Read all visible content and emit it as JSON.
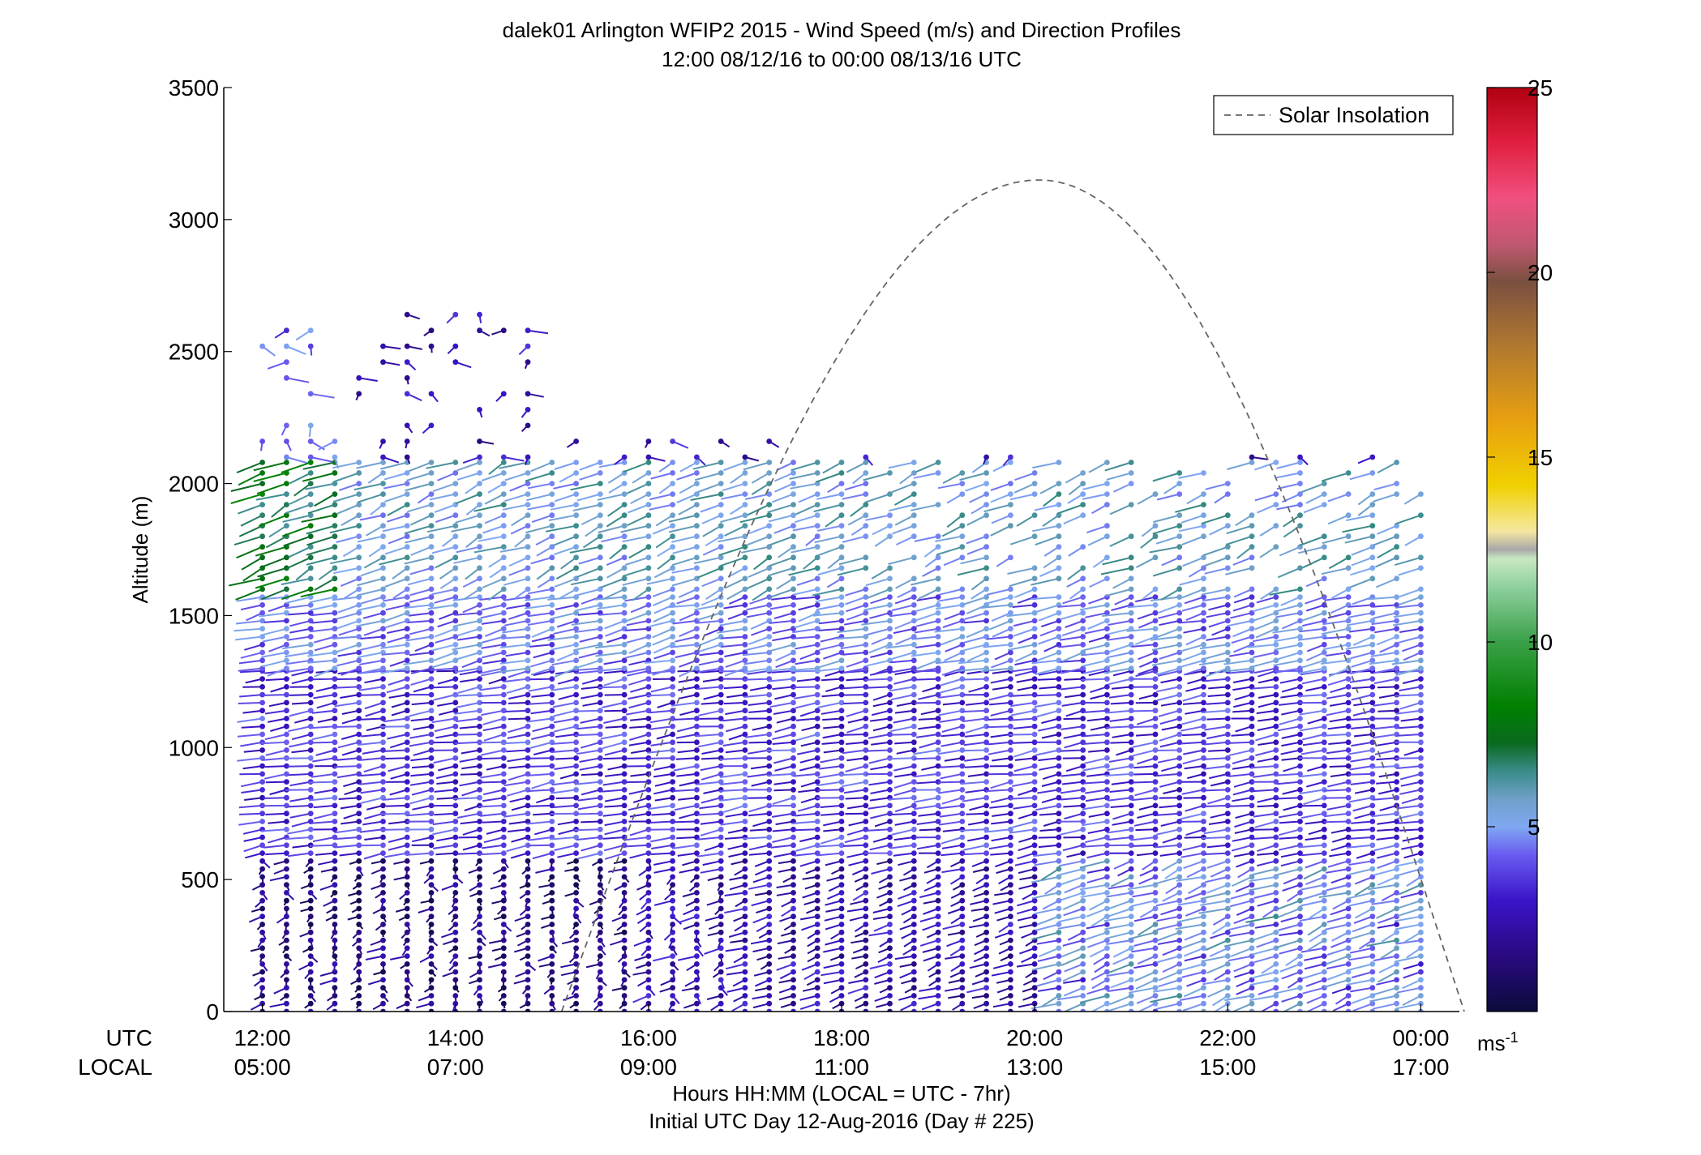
{
  "chart_data": {
    "type": "wind_barb_profile",
    "title_line1": "dalek01 Arlington WFIP2 2015 - Wind Speed (m/s) and Direction Profiles",
    "title_line2": "12:00 08/12/16 to 00:00 08/13/16  UTC",
    "ylabel": "Altitude (m)",
    "xlabel_line1": "Hours HH:MM  (LOCAL = UTC - 7hr)",
    "xlabel_line2": "Initial UTC Day 12-Aug-2016 (Day # 225)",
    "row_label_utc": "UTC",
    "row_label_local": "LOCAL",
    "xlim_hours": [
      11.6,
      24.4
    ],
    "ylim": [
      0,
      3500
    ],
    "yticks": [
      0,
      500,
      1000,
      1500,
      2000,
      2500,
      3000,
      3500
    ],
    "yticklabels": [
      "0",
      "500",
      "1000",
      "1500",
      "2000",
      "2500",
      "3000",
      "3500"
    ],
    "xticks_hours": [
      12,
      14,
      16,
      18,
      20,
      22,
      24
    ],
    "xticklabels_utc": [
      "12:00",
      "14:00",
      "16:00",
      "18:00",
      "20:00",
      "22:00",
      "00:00"
    ],
    "xticklabels_local": [
      "05:00",
      "07:00",
      "09:00",
      "11:00",
      "13:00",
      "15:00",
      "17:00"
    ],
    "legend": {
      "label": "Solar Insolation",
      "placement": "top-right"
    },
    "colorbar": {
      "range": [
        0,
        25
      ],
      "ticks": [
        5,
        10,
        15,
        20,
        25
      ],
      "ticklabels": [
        "5",
        "10",
        "15",
        "20",
        "25"
      ],
      "unit_base": "ms",
      "unit_exp": "-1"
    },
    "solar_insolation_curve": {
      "start_hour": 15.1,
      "end_hour": 24.45,
      "peak_hour": 20.05,
      "peak_altitude": 3150,
      "shape": "sine"
    },
    "profile_times_start": 12.0,
    "profile_times_end": 24.2,
    "profile_interval_hours": 0.25,
    "layers": [
      {
        "lo": 0,
        "hi": 600,
        "step": 30,
        "speed": 2.5,
        "dir": 230
      },
      {
        "lo": 600,
        "hi": 1300,
        "step": 30,
        "speed": 3.5,
        "dir": 250
      },
      {
        "lo": 1300,
        "hi": 1600,
        "step": 30,
        "speed": 4.5,
        "dir": 240
      },
      {
        "lo": 1600,
        "hi": 2100,
        "step": 40,
        "speed": 5.5,
        "dir": 225
      },
      {
        "lo": 2100,
        "hi": 2700,
        "step": 60,
        "speed": 2.5,
        "dir": 170
      }
    ]
  }
}
